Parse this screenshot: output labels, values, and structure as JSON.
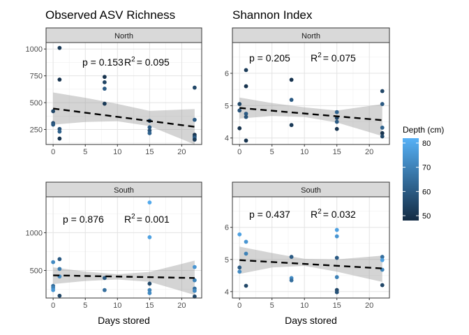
{
  "legend": {
    "title": "Depth (cm)",
    "ticks": [
      50,
      60,
      70,
      80
    ],
    "range": [
      48,
      82
    ],
    "colors": {
      "low": "#132b43",
      "high": "#56b1f7"
    }
  },
  "chart_data": [
    {
      "type": "scatter",
      "title": "Observed ASV Richness",
      "strip": "North",
      "xlabel": "",
      "ylabel": "",
      "xlim": [
        -1.1,
        23.1
      ],
      "ylim": [
        110,
        1060
      ],
      "xticks": [
        0,
        5,
        10,
        15,
        20
      ],
      "yticks": [
        250,
        500,
        750,
        1000
      ],
      "annotation": {
        "p": "p = 0.153",
        "r2_value": "= 0.095"
      },
      "fit": {
        "x0": 0,
        "y0": 445,
        "x1": 22,
        "y1": 275
      },
      "band": [
        [
          0,
          595,
          295
        ],
        [
          5,
          545,
          320
        ],
        [
          10,
          488,
          326
        ],
        [
          15,
          423,
          282
        ],
        [
          22,
          440,
          110
        ]
      ],
      "points": [
        {
          "x": 0,
          "y": 420,
          "d": 55
        },
        {
          "x": 0,
          "y": 310,
          "d": 57
        },
        {
          "x": 0,
          "y": 295,
          "d": 60
        },
        {
          "x": 1,
          "y": 1010,
          "d": 52
        },
        {
          "x": 1,
          "y": 715,
          "d": 50
        },
        {
          "x": 1,
          "y": 255,
          "d": 58
        },
        {
          "x": 1,
          "y": 230,
          "d": 62
        },
        {
          "x": 1,
          "y": 165,
          "d": 50
        },
        {
          "x": 8,
          "y": 740,
          "d": 50
        },
        {
          "x": 8,
          "y": 690,
          "d": 54
        },
        {
          "x": 8,
          "y": 630,
          "d": 60
        },
        {
          "x": 8,
          "y": 490,
          "d": 52
        },
        {
          "x": 15,
          "y": 330,
          "d": 55
        },
        {
          "x": 15,
          "y": 270,
          "d": 60
        },
        {
          "x": 15,
          "y": 240,
          "d": 58
        },
        {
          "x": 15,
          "y": 215,
          "d": 62
        },
        {
          "x": 22,
          "y": 640,
          "d": 55
        },
        {
          "x": 22,
          "y": 340,
          "d": 60
        },
        {
          "x": 22,
          "y": 200,
          "d": 50
        },
        {
          "x": 22,
          "y": 185,
          "d": 55
        },
        {
          "x": 22,
          "y": 170,
          "d": 62
        },
        {
          "x": 22,
          "y": 155,
          "d": 52
        }
      ]
    },
    {
      "type": "scatter",
      "title": "Shannon Index",
      "strip": "North",
      "xlabel": "",
      "ylabel": "",
      "xlim": [
        -1.1,
        23.1
      ],
      "ylim": [
        3.8,
        6.95
      ],
      "xticks": [
        0,
        5,
        10,
        15,
        20
      ],
      "yticks": [
        4,
        5,
        6
      ],
      "annotation": {
        "p": "p = 0.205",
        "r2_value": "= 0.075"
      },
      "fit": {
        "x0": 0,
        "y0": 4.93,
        "x1": 22,
        "y1": 4.55
      },
      "band": [
        [
          0,
          5.25,
          4.6
        ],
        [
          5,
          5.08,
          4.68
        ],
        [
          10,
          4.95,
          4.65
        ],
        [
          15,
          4.85,
          4.48
        ],
        [
          22,
          5.05,
          4.06
        ]
      ],
      "points": [
        {
          "x": 0,
          "y": 5.05,
          "d": 55
        },
        {
          "x": 0,
          "y": 4.85,
          "d": 58
        },
        {
          "x": 0,
          "y": 4.3,
          "d": 50
        },
        {
          "x": 1,
          "y": 6.1,
          "d": 52
        },
        {
          "x": 1,
          "y": 5.6,
          "d": 50
        },
        {
          "x": 1,
          "y": 4.75,
          "d": 60
        },
        {
          "x": 1,
          "y": 4.65,
          "d": 58
        },
        {
          "x": 1,
          "y": 3.92,
          "d": 50
        },
        {
          "x": 8,
          "y": 5.8,
          "d": 50
        },
        {
          "x": 8,
          "y": 5.18,
          "d": 60
        },
        {
          "x": 8,
          "y": 4.4,
          "d": 52
        },
        {
          "x": 15,
          "y": 4.8,
          "d": 62
        },
        {
          "x": 15,
          "y": 4.62,
          "d": 55
        },
        {
          "x": 15,
          "y": 4.5,
          "d": 60
        },
        {
          "x": 15,
          "y": 4.28,
          "d": 50
        },
        {
          "x": 22,
          "y": 5.45,
          "d": 55
        },
        {
          "x": 22,
          "y": 5.05,
          "d": 60
        },
        {
          "x": 22,
          "y": 4.32,
          "d": 62
        },
        {
          "x": 22,
          "y": 4.15,
          "d": 50
        },
        {
          "x": 22,
          "y": 4.05,
          "d": 55
        }
      ]
    },
    {
      "type": "scatter",
      "title": "",
      "strip": "South",
      "xlabel": "Days stored",
      "ylabel": "",
      "xlim": [
        -1.1,
        23.1
      ],
      "ylim": [
        135,
        1475
      ],
      "xticks": [
        0,
        5,
        10,
        15,
        20
      ],
      "yticks": [
        500,
        1000
      ],
      "annotation": {
        "p": "p = 0.876",
        "r2_value": "= 0.001"
      },
      "fit": {
        "x0": 0,
        "y0": 435,
        "x1": 22,
        "y1": 400
      },
      "band": [
        [
          0,
          540,
          320
        ],
        [
          5,
          485,
          360
        ],
        [
          10,
          450,
          380
        ],
        [
          15,
          480,
          350
        ],
        [
          22,
          630,
          175
        ]
      ],
      "points": [
        {
          "x": 0,
          "y": 610,
          "d": 72
        },
        {
          "x": 0,
          "y": 295,
          "d": 65
        },
        {
          "x": 0,
          "y": 270,
          "d": 70
        },
        {
          "x": 0,
          "y": 240,
          "d": 75
        },
        {
          "x": 1,
          "y": 650,
          "d": 60
        },
        {
          "x": 1,
          "y": 520,
          "d": 68
        },
        {
          "x": 1,
          "y": 420,
          "d": 72
        },
        {
          "x": 1,
          "y": 165,
          "d": 55
        },
        {
          "x": 8,
          "y": 400,
          "d": 60
        },
        {
          "x": 8,
          "y": 240,
          "d": 65
        },
        {
          "x": 15,
          "y": 1400,
          "d": 80
        },
        {
          "x": 15,
          "y": 940,
          "d": 78
        },
        {
          "x": 15,
          "y": 325,
          "d": 55
        },
        {
          "x": 15,
          "y": 240,
          "d": 70
        },
        {
          "x": 15,
          "y": 200,
          "d": 72
        },
        {
          "x": 22,
          "y": 545,
          "d": 75
        },
        {
          "x": 22,
          "y": 370,
          "d": 70
        },
        {
          "x": 22,
          "y": 260,
          "d": 65
        },
        {
          "x": 22,
          "y": 230,
          "d": 72
        },
        {
          "x": 22,
          "y": 155,
          "d": 55
        }
      ]
    },
    {
      "type": "scatter",
      "title": "",
      "strip": "South",
      "xlabel": "Days stored",
      "ylabel": "",
      "xlim": [
        -1.1,
        23.1
      ],
      "ylim": [
        3.8,
        6.95
      ],
      "xticks": [
        0,
        5,
        10,
        15,
        20
      ],
      "yticks": [
        4,
        5,
        6
      ],
      "annotation": {
        "p": "p = 0.437",
        "r2_value": "= 0.032"
      },
      "fit": {
        "x0": 0,
        "y0": 4.98,
        "x1": 22,
        "y1": 4.72
      },
      "band": [
        [
          0,
          5.4,
          4.55
        ],
        [
          5,
          5.2,
          4.75
        ],
        [
          10,
          5.02,
          4.8
        ],
        [
          15,
          5.0,
          4.62
        ],
        [
          22,
          5.12,
          4.3
        ]
      ],
      "points": [
        {
          "x": 0,
          "y": 5.78,
          "d": 78
        },
        {
          "x": 0,
          "y": 4.75,
          "d": 60
        },
        {
          "x": 0,
          "y": 4.62,
          "d": 72
        },
        {
          "x": 1,
          "y": 5.55,
          "d": 75
        },
        {
          "x": 1,
          "y": 5.18,
          "d": 70
        },
        {
          "x": 1,
          "y": 4.18,
          "d": 55
        },
        {
          "x": 8,
          "y": 5.08,
          "d": 60
        },
        {
          "x": 8,
          "y": 4.42,
          "d": 72
        },
        {
          "x": 8,
          "y": 4.35,
          "d": 65
        },
        {
          "x": 15,
          "y": 5.92,
          "d": 78
        },
        {
          "x": 15,
          "y": 5.72,
          "d": 75
        },
        {
          "x": 15,
          "y": 5.05,
          "d": 60
        },
        {
          "x": 15,
          "y": 4.45,
          "d": 70
        },
        {
          "x": 15,
          "y": 4.05,
          "d": 55
        },
        {
          "x": 15,
          "y": 3.98,
          "d": 58
        },
        {
          "x": 22,
          "y": 5.08,
          "d": 65
        },
        {
          "x": 22,
          "y": 4.98,
          "d": 78
        },
        {
          "x": 22,
          "y": 4.68,
          "d": 70
        },
        {
          "x": 22,
          "y": 4.2,
          "d": 55
        }
      ]
    }
  ]
}
